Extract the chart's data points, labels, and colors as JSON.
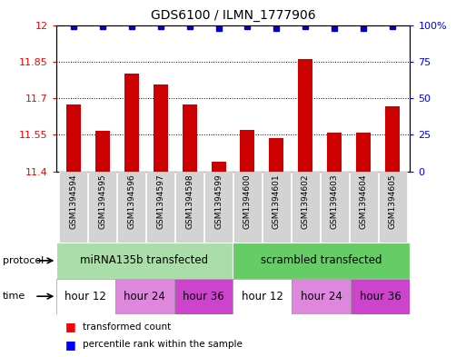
{
  "title": "GDS6100 / ILMN_1777906",
  "samples": [
    "GSM1394594",
    "GSM1394595",
    "GSM1394596",
    "GSM1394597",
    "GSM1394598",
    "GSM1394599",
    "GSM1394600",
    "GSM1394601",
    "GSM1394602",
    "GSM1394603",
    "GSM1394604",
    "GSM1394605"
  ],
  "bar_values": [
    11.675,
    11.565,
    11.8,
    11.755,
    11.675,
    11.44,
    11.57,
    11.535,
    11.86,
    11.56,
    11.56,
    11.665
  ],
  "percentile_values": [
    99,
    99,
    99,
    99,
    99,
    98,
    99,
    98,
    99,
    98,
    98,
    99
  ],
  "bar_color": "#cc0000",
  "percentile_color": "#0000cc",
  "ymin": 11.4,
  "ymax": 12.0,
  "yticks": [
    11.4,
    11.55,
    11.7,
    11.85,
    12.0
  ],
  "ytick_labels": [
    "11.4",
    "11.55",
    "11.7",
    "11.85",
    "12"
  ],
  "right_yticks": [
    0,
    25,
    50,
    75,
    100
  ],
  "right_ytick_labels": [
    "0",
    "25",
    "50",
    "75",
    "100%"
  ],
  "grid_lines": [
    11.55,
    11.7,
    11.85
  ],
  "protocol_label": "protocol",
  "time_label": "time",
  "legend_bar_label": "transformed count",
  "legend_pct_label": "percentile rank within the sample",
  "background_color": "#ffffff",
  "sample_box_color": "#d3d3d3",
  "prot_configs": [
    [
      0,
      6,
      "#aaddaa",
      "miRNA135b transfected"
    ],
    [
      6,
      12,
      "#66cc66",
      "scrambled transfected"
    ]
  ],
  "time_configs": [
    [
      0,
      2,
      "#ffffff",
      "hour 12"
    ],
    [
      2,
      4,
      "#dd88dd",
      "hour 24"
    ],
    [
      4,
      6,
      "#cc44cc",
      "hour 36"
    ],
    [
      6,
      8,
      "#ffffff",
      "hour 12"
    ],
    [
      8,
      10,
      "#dd88dd",
      "hour 24"
    ],
    [
      10,
      12,
      "#cc44cc",
      "hour 36"
    ]
  ]
}
